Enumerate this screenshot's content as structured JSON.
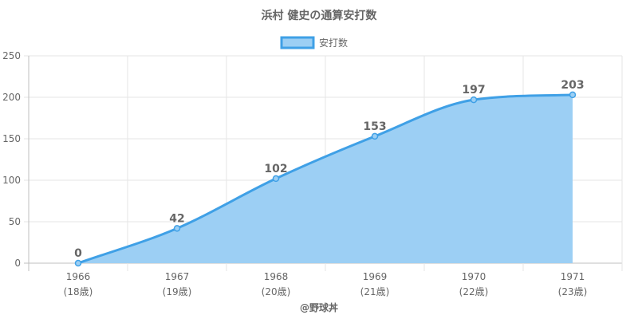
{
  "chart_data": {
    "type": "area",
    "title": "浜村 健史の通算安打数",
    "legend": {
      "position": "top",
      "entries": [
        "安打数"
      ]
    },
    "categories": [
      {
        "year": "1966",
        "age": "(18歳)"
      },
      {
        "year": "1967",
        "age": "(19歳)"
      },
      {
        "year": "1968",
        "age": "(20歳)"
      },
      {
        "year": "1969",
        "age": "(21歳)"
      },
      {
        "year": "1970",
        "age": "(22歳)"
      },
      {
        "year": "1971",
        "age": "(23歳)"
      }
    ],
    "series": [
      {
        "name": "安打数",
        "values": [
          0,
          42,
          102,
          153,
          197,
          203
        ]
      }
    ],
    "data_labels": [
      "0",
      "42",
      "102",
      "153",
      "197",
      "203"
    ],
    "y_ticks": [
      "0",
      "50",
      "100",
      "150",
      "200",
      "250"
    ],
    "ylim": [
      0,
      250
    ],
    "grid": true,
    "colors": {
      "line": "#3fa0e6",
      "fill": "#9ccff4",
      "grid": "#e6e6e6",
      "axis": "#bfbfbf",
      "text": "#666666"
    }
  },
  "credit": "@野球丼"
}
